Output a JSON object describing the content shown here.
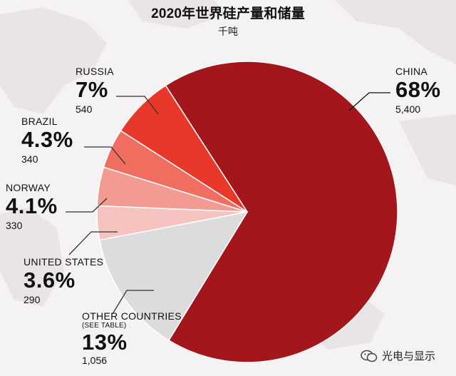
{
  "title": "2020年世界硅产量和储量",
  "subtitle": "千吨",
  "chart_data": {
    "type": "pie",
    "title": "2020年世界硅产量和储量",
    "unit": "千吨",
    "slices": [
      {
        "name": "CHINA",
        "note": "",
        "percent": "68%",
        "value": "5,400",
        "v": 5400,
        "color": "#a3161b"
      },
      {
        "name": "OTHER COUNTRIES",
        "note": "(SEE TABLE)",
        "percent": "13%",
        "value": "1,056",
        "v": 1056,
        "color": "#dcdcdc"
      },
      {
        "name": "UNITED STATES",
        "note": "",
        "percent": "3.6%",
        "value": "290",
        "v": 290,
        "color": "#f6c4c0"
      },
      {
        "name": "NORWAY",
        "note": "",
        "percent": "4.1%",
        "value": "330",
        "v": 330,
        "color": "#f29b93"
      },
      {
        "name": "BRAZIL",
        "note": "",
        "percent": "4.3%",
        "value": "340",
        "v": 340,
        "color": "#ef6e60"
      },
      {
        "name": "RUSSIA",
        "note": "",
        "percent": "7%",
        "value": "540",
        "v": 540,
        "color": "#e8382a"
      }
    ]
  },
  "watermark": "光电与显示"
}
